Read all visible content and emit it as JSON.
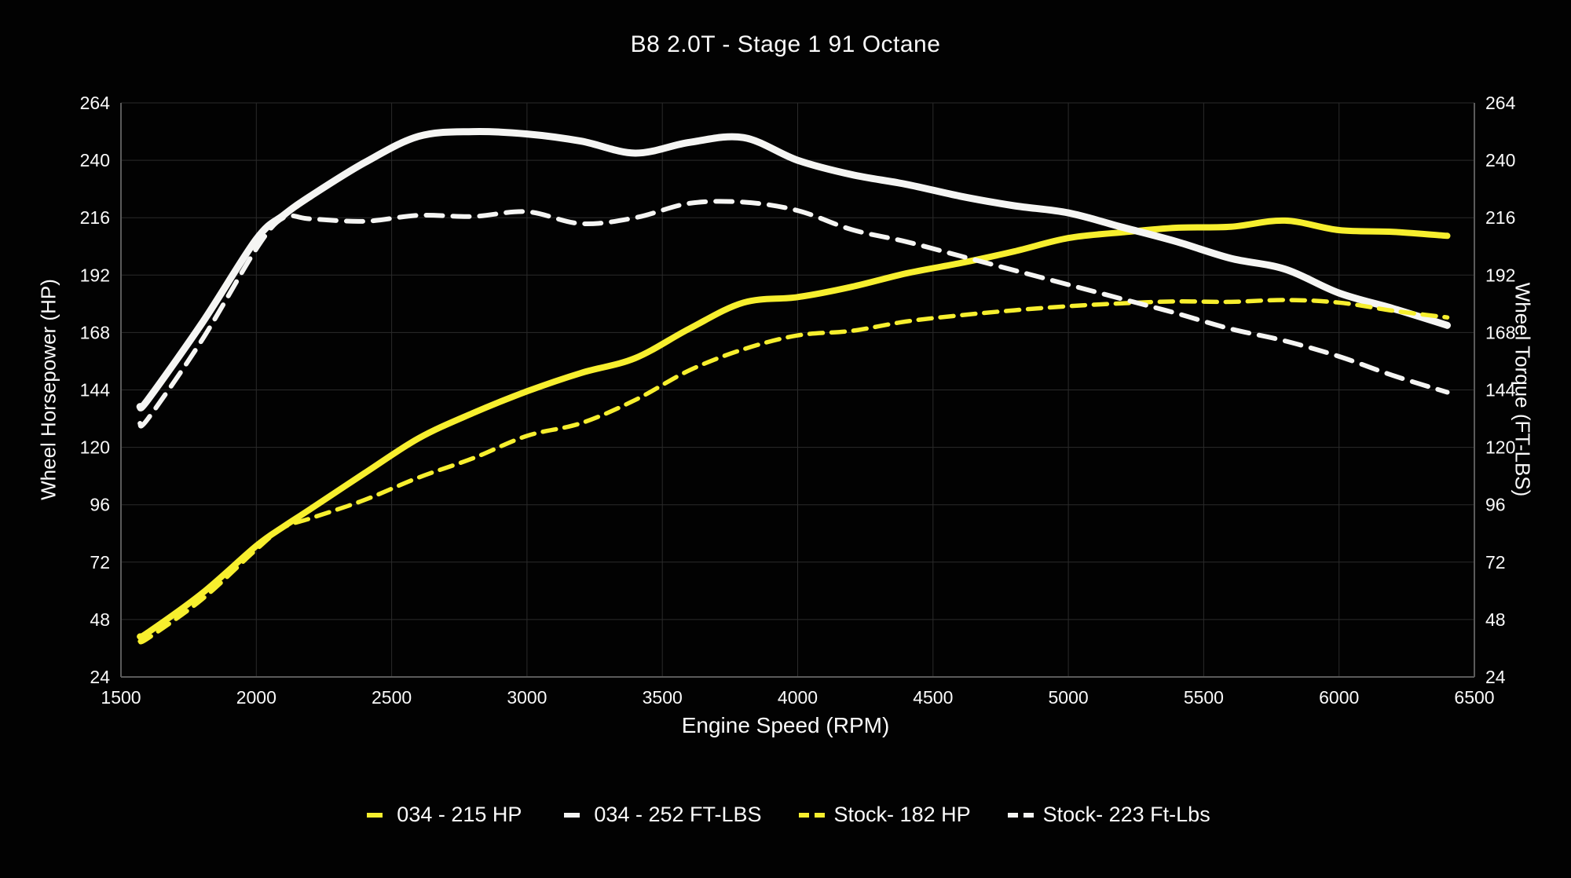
{
  "chart": {
    "title": "B8 2.0T - Stage 1 91 Octane",
    "x_axis_title": "Engine Speed (RPM)",
    "y_axis_left_title": "Wheel Horsepower (HP)",
    "y_axis_right_title": "Wheel Torque (FT-LBS)"
  },
  "colors": {
    "background": "#020202",
    "gridline": "#2b2b2b",
    "spine": "#5a5a5a",
    "text": "#fafafa",
    "yellow": "#f7ef2e",
    "white": "#f5f5f3"
  },
  "chart_data": {
    "type": "line",
    "title": "B8 2.0T - Stage 1 91 Octane",
    "xlabel": "Engine Speed (RPM)",
    "ylabel_left": "Wheel Horsepower (HP)",
    "ylabel_right": "Wheel Torque (FT-LBS)",
    "xlim": [
      1500,
      6500
    ],
    "ylim": [
      24,
      264
    ],
    "x_ticks": [
      1500,
      2000,
      2500,
      3000,
      3500,
      4000,
      4500,
      5000,
      5500,
      6000,
      6500
    ],
    "y_ticks": [
      24,
      48,
      72,
      96,
      120,
      144,
      168,
      192,
      216,
      240,
      264
    ],
    "grid": true,
    "legend_position": "bottom",
    "x": [
      1570,
      1600,
      1800,
      2000,
      2100,
      2200,
      2400,
      2600,
      2800,
      3000,
      3200,
      3400,
      3600,
      3800,
      4000,
      4200,
      4400,
      4600,
      4800,
      5000,
      5200,
      5400,
      5600,
      5800,
      6000,
      6200,
      6400
    ],
    "series": [
      {
        "name": "034 - 215 HP",
        "axis": "left",
        "color": "#f7ef2e",
        "style": "solid",
        "width": 8,
        "values": [
          40.9,
          42.6,
          59.0,
          78.8,
          86.8,
          94.2,
          109.2,
          123.8,
          134.3,
          143.4,
          151.1,
          157.3,
          169.6,
          180.5,
          182.8,
          187.1,
          192.7,
          197.0,
          201.9,
          207.5,
          209.9,
          211.8,
          212.2,
          214.8,
          210.8,
          210.1,
          208.4
        ]
      },
      {
        "name": "034 - 252 FT-LBS",
        "axis": "right",
        "color": "#f5f5f3",
        "style": "solid",
        "width": 9,
        "values": [
          137,
          140,
          172,
          207,
          217,
          225,
          239,
          250,
          252,
          251,
          248,
          243,
          247.5,
          249.5,
          240,
          234,
          230,
          225,
          221,
          218,
          212,
          206,
          199,
          194.5,
          184.5,
          178,
          171
        ]
      },
      {
        "name": "Stock- 182 HP",
        "axis": "left",
        "color": "#f7ef2e",
        "style": "dashed",
        "width": 5.5,
        "values": [
          38.9,
          40.2,
          56.5,
          77.3,
          86.4,
          90.3,
          98.0,
          107.4,
          115.4,
          124.8,
          130.1,
          139.8,
          152.2,
          161.0,
          166.8,
          168.7,
          172.6,
          175.2,
          177.3,
          179.0,
          180.2,
          181.0,
          180.8,
          181.6,
          180.5,
          177.1,
          174.3
        ]
      },
      {
        "name": "Stock- 223 Ft-Lbs",
        "axis": "right",
        "color": "#f5f5f3",
        "style": "dashed",
        "width": 6,
        "values": [
          130,
          132,
          165,
          203,
          216,
          215.5,
          214.5,
          217,
          216.5,
          218.5,
          213.5,
          216,
          222,
          222.5,
          219,
          211,
          206,
          200,
          194,
          188,
          182,
          176,
          169.5,
          164.5,
          158,
          150,
          143
        ]
      }
    ]
  }
}
